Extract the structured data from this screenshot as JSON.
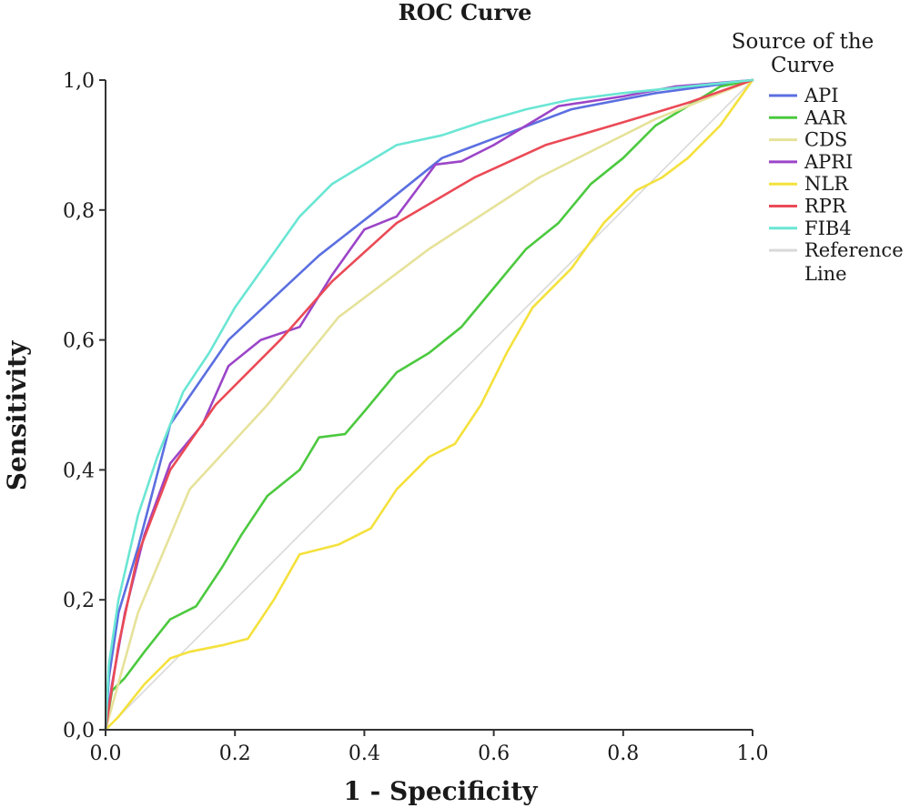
{
  "chart_data": {
    "type": "line",
    "title": "ROC Curve",
    "xlabel": "1 - Specificity",
    "ylabel": "Sensitivity",
    "xlim": [
      0,
      1
    ],
    "ylim": [
      0,
      1
    ],
    "x_ticks": [
      "0.0",
      "0.2",
      "0.4",
      "0.6",
      "0.8",
      "1.0"
    ],
    "y_ticks": [
      "0,0",
      "0,2",
      "0,4",
      "0,6",
      "0,8",
      "1,0"
    ],
    "grid": false,
    "legend": {
      "title": "Source of the Curve",
      "position": "right"
    },
    "series": [
      {
        "name": "API",
        "color": "#5b6fe0",
        "points": [
          [
            0,
            0
          ],
          [
            0.005,
            0.08
          ],
          [
            0.02,
            0.18
          ],
          [
            0.05,
            0.28
          ],
          [
            0.1,
            0.47
          ],
          [
            0.19,
            0.6
          ],
          [
            0.33,
            0.73
          ],
          [
            0.42,
            0.8
          ],
          [
            0.52,
            0.88
          ],
          [
            0.6,
            0.91
          ],
          [
            0.72,
            0.955
          ],
          [
            0.85,
            0.98
          ],
          [
            1,
            1
          ]
        ]
      },
      {
        "name": "AAR",
        "color": "#4cc93f",
        "points": [
          [
            0,
            0
          ],
          [
            0.01,
            0.06
          ],
          [
            0.03,
            0.08
          ],
          [
            0.06,
            0.12
          ],
          [
            0.1,
            0.17
          ],
          [
            0.14,
            0.19
          ],
          [
            0.18,
            0.25
          ],
          [
            0.21,
            0.3
          ],
          [
            0.25,
            0.36
          ],
          [
            0.3,
            0.4
          ],
          [
            0.33,
            0.45
          ],
          [
            0.37,
            0.455
          ],
          [
            0.4,
            0.49
          ],
          [
            0.45,
            0.55
          ],
          [
            0.5,
            0.58
          ],
          [
            0.55,
            0.62
          ],
          [
            0.6,
            0.68
          ],
          [
            0.65,
            0.74
          ],
          [
            0.7,
            0.78
          ],
          [
            0.75,
            0.84
          ],
          [
            0.8,
            0.88
          ],
          [
            0.85,
            0.93
          ],
          [
            0.9,
            0.96
          ],
          [
            0.95,
            0.99
          ],
          [
            1,
            1
          ]
        ]
      },
      {
        "name": "CDS",
        "color": "#e6e29a",
        "points": [
          [
            0,
            0
          ],
          [
            0.05,
            0.18
          ],
          [
            0.13,
            0.37
          ],
          [
            0.25,
            0.5
          ],
          [
            0.36,
            0.635
          ],
          [
            0.5,
            0.74
          ],
          [
            0.67,
            0.85
          ],
          [
            0.85,
            0.94
          ],
          [
            1,
            1
          ]
        ]
      },
      {
        "name": "APRI",
        "color": "#9b45c8",
        "points": [
          [
            0,
            0
          ],
          [
            0.01,
            0.07
          ],
          [
            0.03,
            0.18
          ],
          [
            0.06,
            0.3
          ],
          [
            0.1,
            0.41
          ],
          [
            0.15,
            0.47
          ],
          [
            0.19,
            0.56
          ],
          [
            0.24,
            0.6
          ],
          [
            0.3,
            0.62
          ],
          [
            0.35,
            0.7
          ],
          [
            0.4,
            0.77
          ],
          [
            0.45,
            0.79
          ],
          [
            0.48,
            0.83
          ],
          [
            0.51,
            0.87
          ],
          [
            0.55,
            0.875
          ],
          [
            0.6,
            0.9
          ],
          [
            0.65,
            0.93
          ],
          [
            0.7,
            0.96
          ],
          [
            0.8,
            0.975
          ],
          [
            0.88,
            0.99
          ],
          [
            1,
            1
          ]
        ]
      },
      {
        "name": "NLR",
        "color": "#f4e13c",
        "points": [
          [
            0,
            0
          ],
          [
            0.02,
            0.02
          ],
          [
            0.06,
            0.07
          ],
          [
            0.1,
            0.11
          ],
          [
            0.13,
            0.12
          ],
          [
            0.18,
            0.13
          ],
          [
            0.22,
            0.14
          ],
          [
            0.26,
            0.2
          ],
          [
            0.3,
            0.27
          ],
          [
            0.36,
            0.285
          ],
          [
            0.41,
            0.31
          ],
          [
            0.45,
            0.37
          ],
          [
            0.5,
            0.42
          ],
          [
            0.54,
            0.44
          ],
          [
            0.58,
            0.5
          ],
          [
            0.62,
            0.58
          ],
          [
            0.66,
            0.65
          ],
          [
            0.72,
            0.71
          ],
          [
            0.77,
            0.78
          ],
          [
            0.82,
            0.83
          ],
          [
            0.86,
            0.85
          ],
          [
            0.9,
            0.88
          ],
          [
            0.95,
            0.93
          ],
          [
            1,
            1
          ]
        ]
      },
      {
        "name": "RPR",
        "color": "#ea4a56",
        "points": [
          [
            0,
            0
          ],
          [
            0.02,
            0.13
          ],
          [
            0.05,
            0.27
          ],
          [
            0.1,
            0.4
          ],
          [
            0.17,
            0.5
          ],
          [
            0.27,
            0.6
          ],
          [
            0.35,
            0.69
          ],
          [
            0.45,
            0.78
          ],
          [
            0.57,
            0.85
          ],
          [
            0.68,
            0.9
          ],
          [
            0.8,
            0.935
          ],
          [
            0.9,
            0.965
          ],
          [
            1,
            1
          ]
        ]
      },
      {
        "name": "FIB4",
        "color": "#6ae6d4",
        "points": [
          [
            0,
            0
          ],
          [
            0.005,
            0.1
          ],
          [
            0.02,
            0.2
          ],
          [
            0.05,
            0.33
          ],
          [
            0.08,
            0.42
          ],
          [
            0.12,
            0.52
          ],
          [
            0.16,
            0.58
          ],
          [
            0.2,
            0.65
          ],
          [
            0.25,
            0.72
          ],
          [
            0.3,
            0.79
          ],
          [
            0.35,
            0.84
          ],
          [
            0.4,
            0.87
          ],
          [
            0.45,
            0.9
          ],
          [
            0.52,
            0.915
          ],
          [
            0.58,
            0.935
          ],
          [
            0.65,
            0.955
          ],
          [
            0.72,
            0.97
          ],
          [
            0.8,
            0.98
          ],
          [
            0.9,
            0.99
          ],
          [
            1,
            1
          ]
        ]
      },
      {
        "name": "Reference Line",
        "color": "#d9d9d9",
        "points": [
          [
            0,
            0
          ],
          [
            1,
            1
          ]
        ]
      }
    ]
  }
}
